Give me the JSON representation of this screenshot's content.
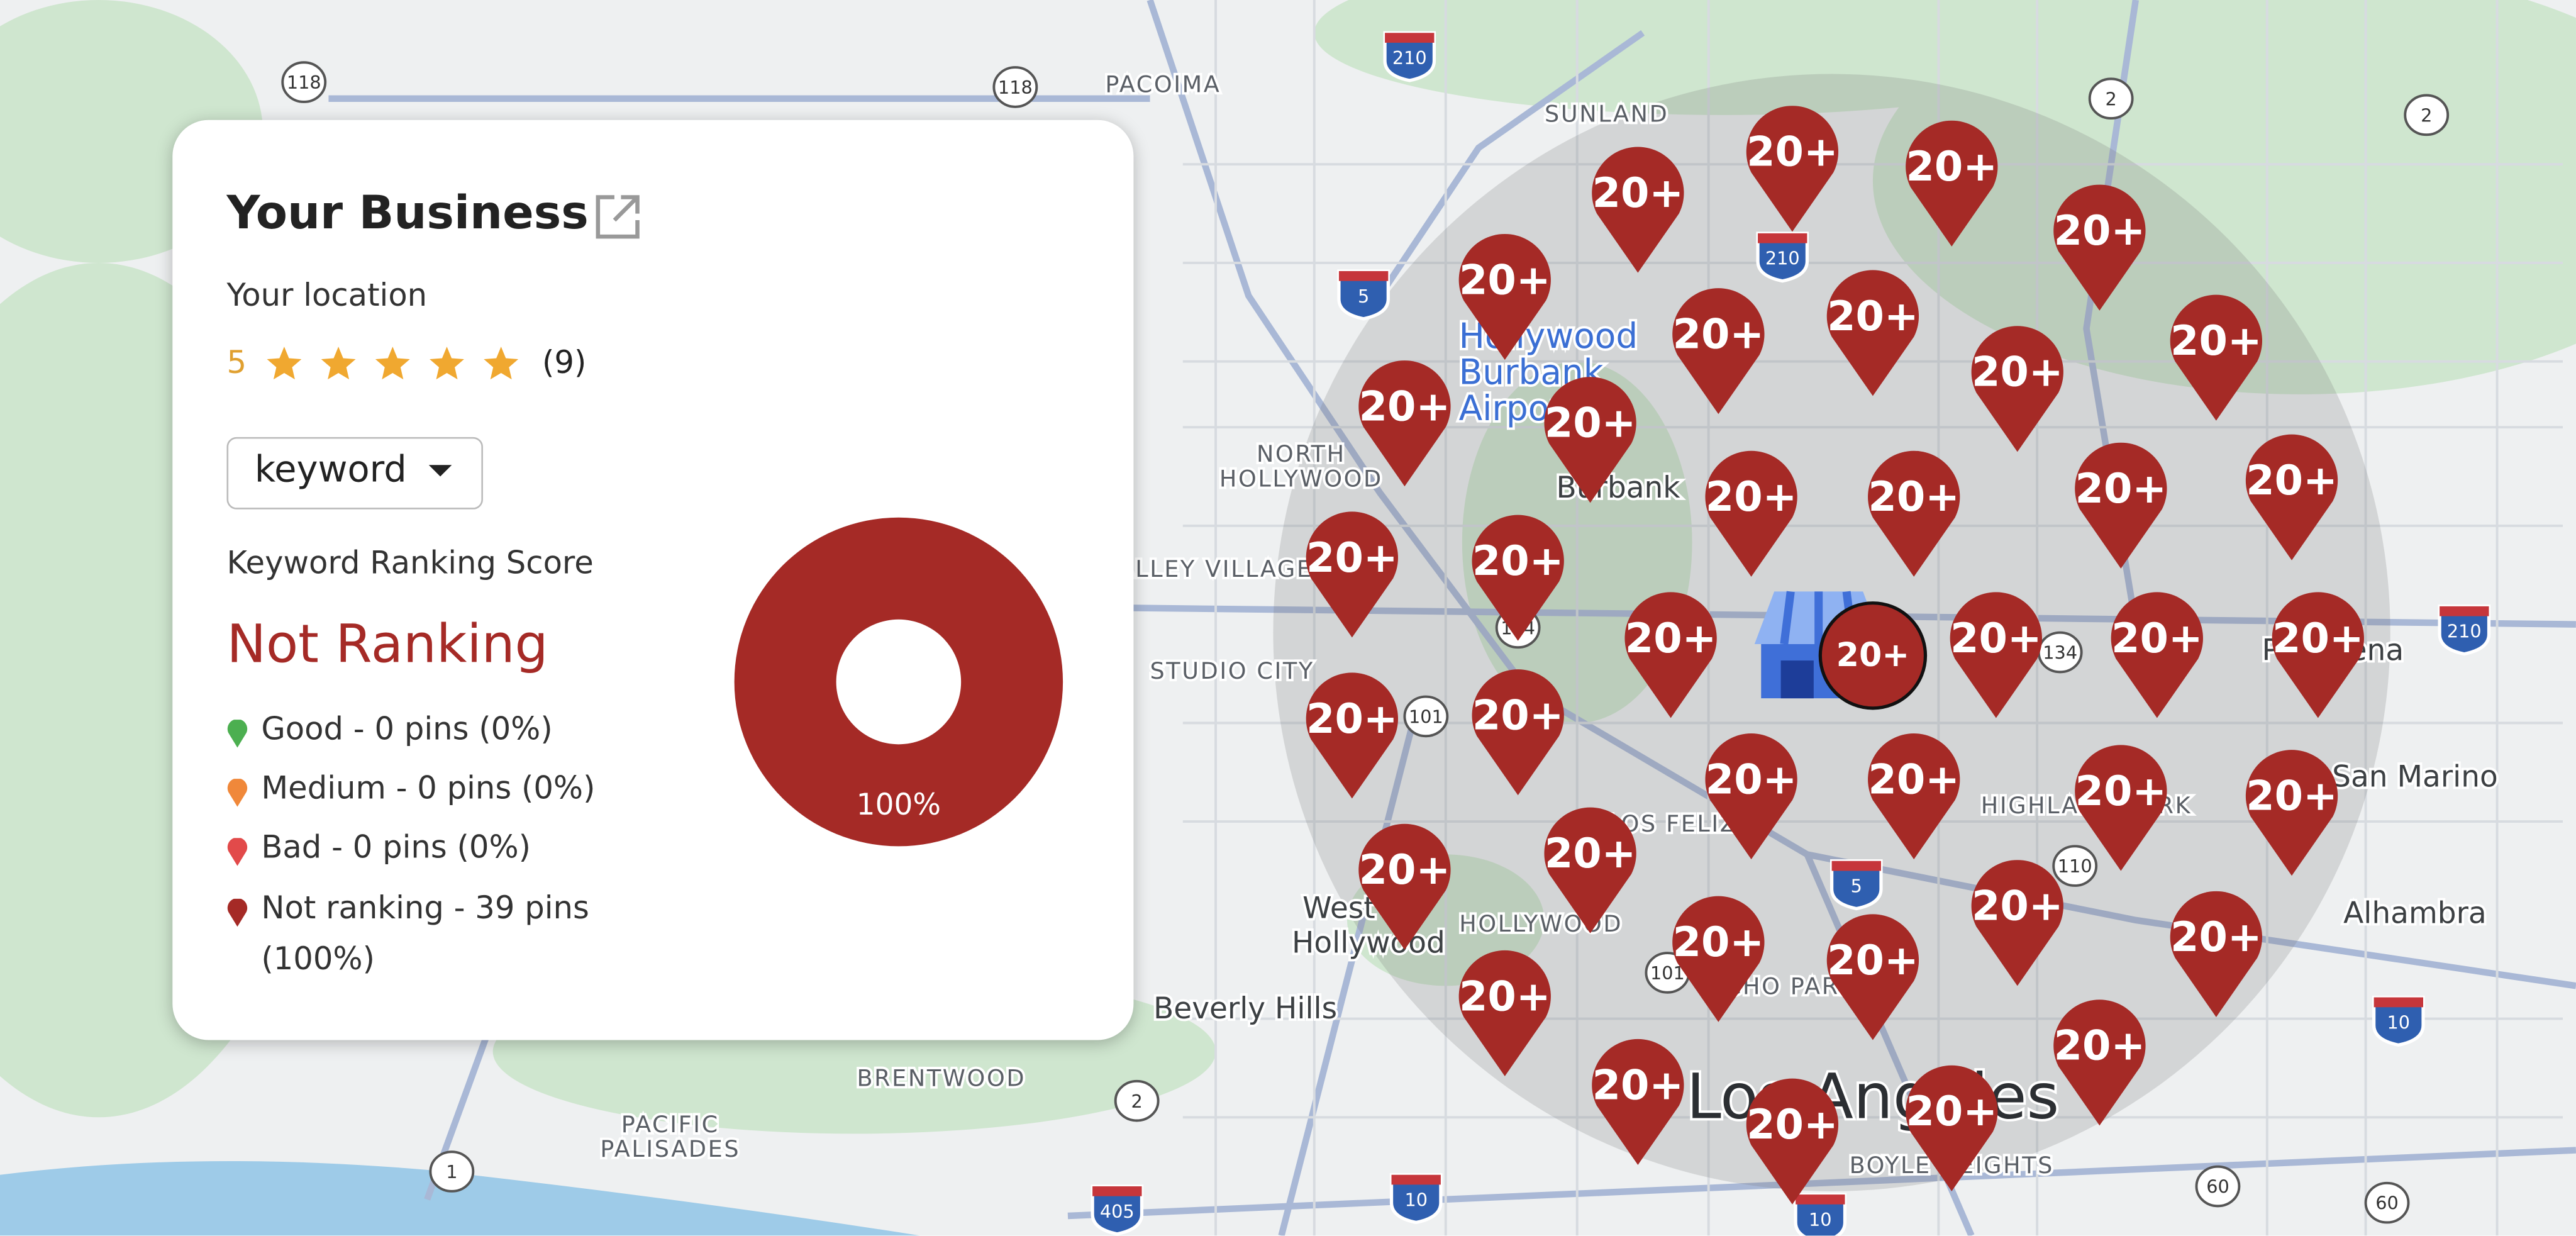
{
  "card": {
    "title": "Your Business",
    "subtitle": "Your location",
    "rating": 5,
    "review_count": "(9)",
    "dropdown": "keyword",
    "score_label": "Keyword Ranking Score",
    "status": "Not Ranking",
    "legend": [
      {
        "label": "Good - 0 pins (0%)",
        "color": "#4caf50"
      },
      {
        "label": "Medium - 0 pins (0%)",
        "color": "#f0883a"
      },
      {
        "label": "Bad - 0 pins (0%)",
        "color": "#e24a4a"
      },
      {
        "label": "Not ranking - 39 pins (100%)",
        "color": "#a52a26"
      }
    ]
  },
  "chart_data": {
    "type": "pie",
    "donut": true,
    "values": [
      100
    ],
    "value_labels": [
      "100%"
    ],
    "colors": [
      "#a52a26"
    ]
  },
  "map": {
    "pins": [
      "20+",
      "20+",
      "20+",
      "20+",
      "20+",
      "20+",
      "20+",
      "20+",
      "20+",
      "20+",
      "20+",
      "20+",
      "20+",
      "20+",
      "20+",
      "20+",
      "20+",
      "20+",
      "20+",
      "20+",
      "20+",
      "20+",
      "20+",
      "20+",
      "20+",
      "20+",
      "20+",
      "20+",
      "20+",
      "20+",
      "20+",
      "20+",
      "20+",
      "20+",
      "20+",
      "20+",
      "20+",
      "20+",
      "20+"
    ],
    "labels": [
      "SUNLAND",
      "PACOIMA",
      "NORTH",
      "HOLLYWOOD",
      "Burbank",
      "VALLEY VILLAGE",
      "STUDIO CITY",
      "Hollywood",
      "Burbank",
      "Airport",
      "LOS FELIZ",
      "HOLLYWOOD",
      "West",
      "Hollywood",
      "Beverly Hills",
      "BRENTWOOD",
      "PACIFIC",
      "PALISADES",
      "ECHO PARK",
      "Los Angeles",
      "BOYLE HEIGHTS",
      "HIGHLAND PARK",
      "Pasadena",
      "San Marino",
      "Alhambra"
    ],
    "shields": [
      "210",
      "118",
      "118",
      "5",
      "101",
      "134",
      "210",
      "134",
      "110",
      "5",
      "101",
      "10",
      "405",
      "2",
      "1",
      "10",
      "60",
      "60",
      "210",
      "2",
      "2",
      "10"
    ]
  }
}
